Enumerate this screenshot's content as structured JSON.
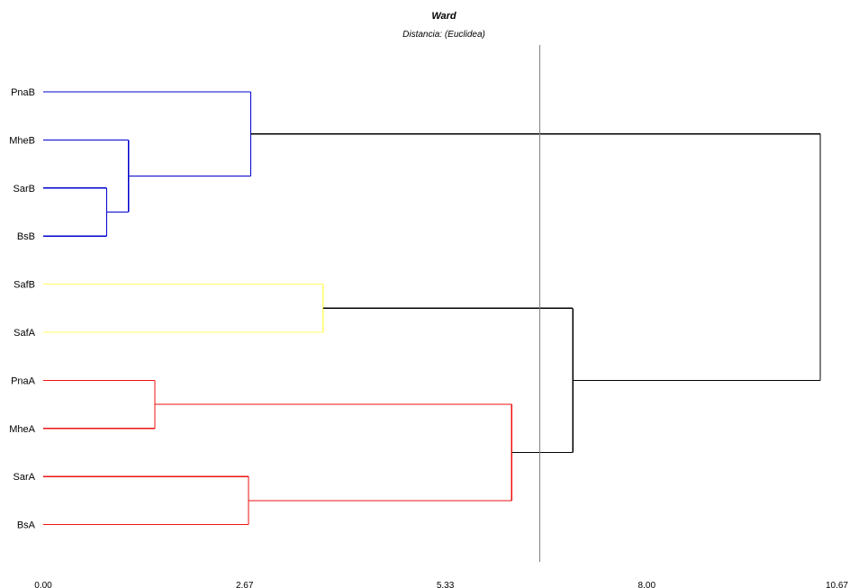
{
  "chart_data": {
    "type": "dendrogram",
    "title": "Ward",
    "subtitle": "Distancia: (Euclidea)",
    "xlim": [
      0,
      10.67
    ],
    "x_ticks": [
      0,
      2.67,
      5.33,
      8.0,
      10.67
    ],
    "x_tick_labels": [
      "0.00",
      "2.67",
      "5.33",
      "8.00",
      "10.67"
    ],
    "cut_line": 6.58,
    "colors": {
      "group_blue": "#0000cc",
      "group_yellow": "#ffff66",
      "group_red": "#ee1111",
      "upper": "#000000",
      "cut_line": "#808080"
    },
    "leaves": [
      "PnaB",
      "MheB",
      "SarB",
      "BsB",
      "SafB",
      "SafA",
      "PnaA",
      "MheA",
      "SarA",
      "BsA"
    ],
    "merges": [
      {
        "id": "n1",
        "children": [
          "SarB",
          "BsB"
        ],
        "height": 0.84,
        "color": "group_blue"
      },
      {
        "id": "n2",
        "children": [
          "MheB",
          "n1"
        ],
        "height": 1.13,
        "color": "group_blue"
      },
      {
        "id": "n3",
        "children": [
          "PnaB",
          "n2"
        ],
        "height": 2.75,
        "color": "group_blue"
      },
      {
        "id": "n4",
        "children": [
          "SafB",
          "SafA"
        ],
        "height": 3.71,
        "color": "group_yellow"
      },
      {
        "id": "n5",
        "children": [
          "PnaA",
          "MheA"
        ],
        "height": 1.48,
        "color": "group_red"
      },
      {
        "id": "n6",
        "children": [
          "SarA",
          "BsA"
        ],
        "height": 2.72,
        "color": "group_red"
      },
      {
        "id": "n7",
        "children": [
          "n5",
          "n6"
        ],
        "height": 6.21,
        "color": "group_red"
      },
      {
        "id": "n8",
        "children": [
          "n4",
          "n7"
        ],
        "height": 7.02,
        "color": "upper"
      },
      {
        "id": "n9",
        "children": [
          "n3",
          "n8"
        ],
        "height": 10.3,
        "color": "upper"
      }
    ]
  }
}
